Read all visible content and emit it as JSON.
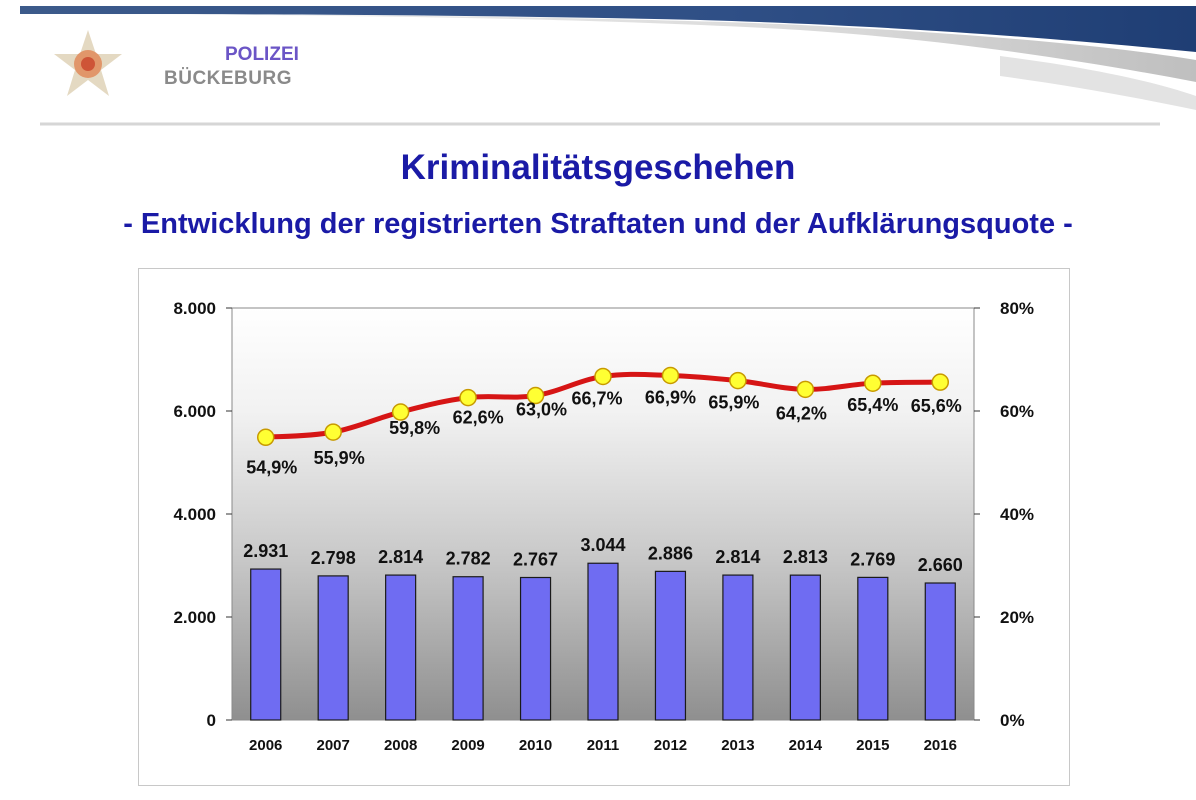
{
  "header": {
    "brand_line1": "POLIZEI",
    "brand_line2": "BÜCKEBURG",
    "logo_icon": "police-star-badge-icon"
  },
  "slide": {
    "title": "Kriminalitätsgeschehen",
    "subtitle": "- Entwicklung der registrierten Straftaten und der Aufklärungsquote -"
  },
  "colors": {
    "title": "#1a1aa6",
    "brand_top": "#6b55c6",
    "bar_fill": "#6f6cf2",
    "line": "#d61515",
    "marker": "#ffff33"
  },
  "chart_data": {
    "type": "bar",
    "categories": [
      "2006",
      "2007",
      "2008",
      "2009",
      "2010",
      "2011",
      "2012",
      "2013",
      "2014",
      "2015",
      "2016"
    ],
    "series": [
      {
        "type": "bar",
        "axis": "left",
        "values": [
          2931,
          2798,
          2814,
          2782,
          2767,
          3044,
          2886,
          2814,
          2813,
          2769,
          2660
        ],
        "labels": [
          "2.931",
          "2.798",
          "2.814",
          "2.782",
          "2.767",
          "3.044",
          "2.886",
          "2.814",
          "2.813",
          "2.769",
          "2.660"
        ]
      },
      {
        "type": "line",
        "axis": "right",
        "values": [
          54.9,
          55.9,
          59.8,
          62.6,
          63.0,
          66.7,
          66.9,
          65.9,
          64.2,
          65.4,
          65.6
        ],
        "labels": [
          "54,9%",
          "55,9%",
          "59,8%",
          "62,6%",
          "63,0%",
          "66,7%",
          "66,9%",
          "65,9%",
          "64,2%",
          "65,4%",
          "65,6%"
        ]
      }
    ],
    "ylim_left": [
      0,
      8000
    ],
    "yticks_left": [
      "0",
      "2.000",
      "4.000",
      "6.000",
      "8.000"
    ],
    "ylim_right": [
      0,
      80
    ],
    "yticks_right": [
      "0%",
      "20%",
      "40%",
      "60%",
      "80%"
    ],
    "grid": false,
    "legend": "none"
  }
}
